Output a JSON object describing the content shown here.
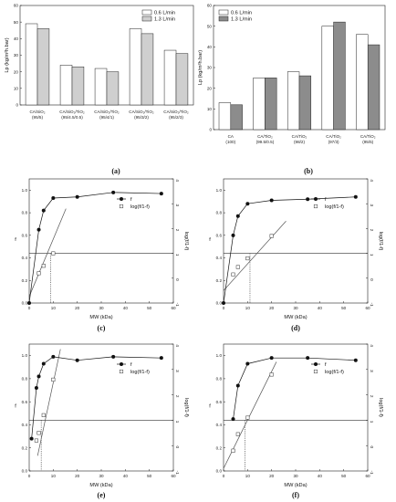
{
  "chart_data": [
    {
      "type": "bar",
      "caption": "(a)",
      "ylabel": "Lp (kg/m²h.bar)",
      "ylim": [
        0,
        60
      ],
      "yticks": [
        0,
        10,
        20,
        30,
        40,
        50,
        60
      ],
      "categories": [
        "CA/SiO₂ (95/5)",
        "CA/SiO₂/TiO₂ (95/4.5/0.5)",
        "CA/SiO₂/TiO₂ (95/4/1)",
        "CA/SiO₂/TiO₂ (95/3/2)",
        "CA/SiO₂/TiO₂ (95/2/3)"
      ],
      "series": [
        {
          "name": "0.6 L/min",
          "values": [
            49,
            24,
            22,
            46,
            33
          ],
          "color": "#ffffff"
        },
        {
          "name": "1.3 L/min",
          "values": [
            46,
            23,
            20,
            43,
            31
          ],
          "color": "#cfcfcf"
        }
      ],
      "legend": "top-right"
    },
    {
      "type": "bar",
      "caption": "(b)",
      "ylabel": "Lp (kg/m²h.bar)",
      "ylim": [
        0,
        60
      ],
      "yticks": [
        0,
        10,
        20,
        30,
        40,
        50,
        60
      ],
      "categories": [
        "CA (100)",
        "CA/TiO₂ (99.5/0.5)",
        "CA/TiO₂ (98/2)",
        "CA/TiO₂ (97/3)",
        "CA/TiO₂ (95/5)"
      ],
      "series": [
        {
          "name": "0.6 L/min",
          "values": [
            13,
            25,
            28,
            50,
            46
          ],
          "color": "#ffffff"
        },
        {
          "name": "1.3 L/min",
          "values": [
            12,
            25,
            26,
            52,
            41
          ],
          "color": "#8c8c8c"
        }
      ],
      "legend": "top-left"
    },
    {
      "type": "scatter",
      "caption": "(c)",
      "xlabel": "MW (kDa)",
      "ylabel": "f",
      "y2label": "log(f/1-f)",
      "xlim": [
        0,
        60
      ],
      "xticks": [
        0,
        10,
        20,
        30,
        40,
        50,
        60
      ],
      "ylim": [
        0,
        1.1
      ],
      "yticks": [
        0.0,
        0.2,
        0.4,
        0.6,
        0.8,
        1.0
      ],
      "y2lim": [
        -1,
        4
      ],
      "y2ticks": [
        -1,
        0,
        1,
        2,
        3,
        4
      ],
      "legend": "top-right",
      "series": [
        {
          "name": "f",
          "marker": "filled-circle",
          "x": [
            0,
            4,
            6,
            10,
            20,
            35,
            55
          ],
          "y": [
            0.0,
            0.65,
            0.82,
            0.93,
            0.94,
            0.98,
            0.97
          ]
        },
        {
          "name": "log(f/1-f)",
          "marker": "open-square",
          "axis": "right",
          "x": [
            4,
            6,
            10
          ],
          "y": [
            0.2,
            0.5,
            1.0
          ]
        }
      ],
      "fit_line": {
        "x": [
          0,
          15.3
        ],
        "y2": [
          -0.74,
          2.8
        ]
      },
      "hline_y2": 1.0,
      "cutoff_x": 9
    },
    {
      "type": "scatter",
      "caption": "(d)",
      "xlabel": "MW (kDa)",
      "ylabel": "f",
      "y2label": "log(f/1-f)",
      "xlim": [
        0,
        60
      ],
      "xticks": [
        0,
        10,
        20,
        30,
        40,
        50,
        60
      ],
      "ylim": [
        0,
        1.1
      ],
      "yticks": [
        0.0,
        0.2,
        0.4,
        0.6,
        0.8,
        1.0
      ],
      "y2lim": [
        -1,
        4
      ],
      "y2ticks": [
        -1,
        0,
        1,
        2,
        3,
        4
      ],
      "legend": "top-right",
      "series": [
        {
          "name": "f",
          "marker": "filled-circle",
          "x": [
            0,
            4,
            6,
            10,
            20,
            35,
            55
          ],
          "y": [
            0.0,
            0.6,
            0.77,
            0.88,
            0.91,
            0.92,
            0.94
          ]
        },
        {
          "name": "log(f/1-f)",
          "marker": "open-square",
          "axis": "right",
          "x": [
            4,
            6,
            10,
            20
          ],
          "y": [
            0.15,
            0.45,
            0.8,
            1.7
          ]
        }
      ],
      "fit_line": {
        "x": [
          0,
          26
        ],
        "y2": [
          -0.5,
          2.3
        ]
      },
      "hline_y2": 1.0,
      "cutoff_x": 11
    },
    {
      "type": "scatter",
      "caption": "(e)",
      "xlabel": "MW (kDa)",
      "ylabel": "f",
      "y2label": "log(f/1-f)",
      "xlim": [
        0,
        60
      ],
      "xticks": [
        0,
        10,
        20,
        30,
        40,
        50,
        60
      ],
      "ylim": [
        0,
        1.1
      ],
      "yticks": [
        0.0,
        0.2,
        0.4,
        0.6,
        0.8,
        1.0
      ],
      "y2lim": [
        -1,
        4
      ],
      "y2ticks": [
        -1,
        0,
        1,
        2,
        3,
        4
      ],
      "legend": "top-right",
      "series": [
        {
          "name": "f",
          "marker": "filled-circle",
          "x": [
            1,
            3,
            4,
            6,
            10,
            20,
            35,
            55
          ],
          "y": [
            0.28,
            0.72,
            0.82,
            0.93,
            0.99,
            0.96,
            0.99,
            0.98
          ]
        },
        {
          "name": "log(f/1-f)",
          "marker": "open-square",
          "axis": "right",
          "x": [
            3,
            4,
            6,
            10
          ],
          "y": [
            0.2,
            0.5,
            1.2,
            2.6
          ]
        }
      ],
      "fit_line": {
        "x": [
          3.5,
          13
        ],
        "y2": [
          -0.4,
          3.8
        ]
      },
      "hline_y2": 1.0,
      "cutoff_x": 5
    },
    {
      "type": "scatter",
      "caption": "(f)",
      "xlabel": "MW (kDa)",
      "ylabel": "f",
      "y2label": "log(f/1-f)",
      "xlim": [
        0,
        60
      ],
      "xticks": [
        0,
        10,
        20,
        30,
        40,
        50,
        60
      ],
      "ylim": [
        0,
        1.1
      ],
      "yticks": [
        0.0,
        0.2,
        0.4,
        0.6,
        0.8,
        1.0
      ],
      "y2lim": [
        -1,
        4
      ],
      "y2ticks": [
        -1,
        0,
        1,
        2,
        3,
        4
      ],
      "legend": "top-right",
      "series": [
        {
          "name": "f",
          "marker": "filled-circle",
          "x": [
            4,
            6,
            10,
            20,
            35,
            55
          ],
          "y": [
            0.45,
            0.74,
            0.93,
            0.98,
            0.98,
            0.96
          ]
        },
        {
          "name": "log(f/1-f)",
          "marker": "open-square",
          "axis": "right",
          "x": [
            4,
            6,
            10,
            20
          ],
          "y": [
            -0.2,
            0.45,
            1.1,
            2.8
          ]
        }
      ],
      "fit_line": {
        "x": [
          0,
          22
        ],
        "y2": [
          -0.9,
          3.3
        ]
      },
      "hline_y2": 1.0,
      "cutoff_x": 9
    }
  ]
}
